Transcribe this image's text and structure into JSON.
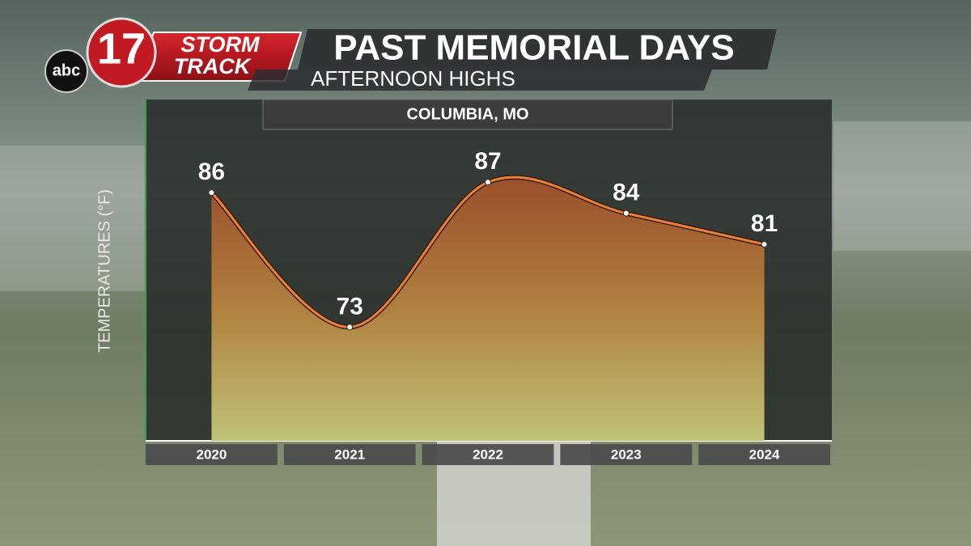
{
  "branding": {
    "network": "abc",
    "channel": "17",
    "brand_top": "STORM",
    "brand_bottom": "TRACK"
  },
  "chart_data": {
    "type": "area-line",
    "title": "PAST MEMORIAL DAYS",
    "subtitle": "AFTERNOON HIGHS",
    "location": "COLUMBIA, MO",
    "y_label": "TEMPERATURES (°F)",
    "categories": [
      "2020",
      "2021",
      "2022",
      "2023",
      "2024"
    ],
    "values": [
      86,
      73,
      87,
      84,
      81
    ],
    "color": "#e8823a",
    "ylim": [
      62,
      95
    ]
  }
}
